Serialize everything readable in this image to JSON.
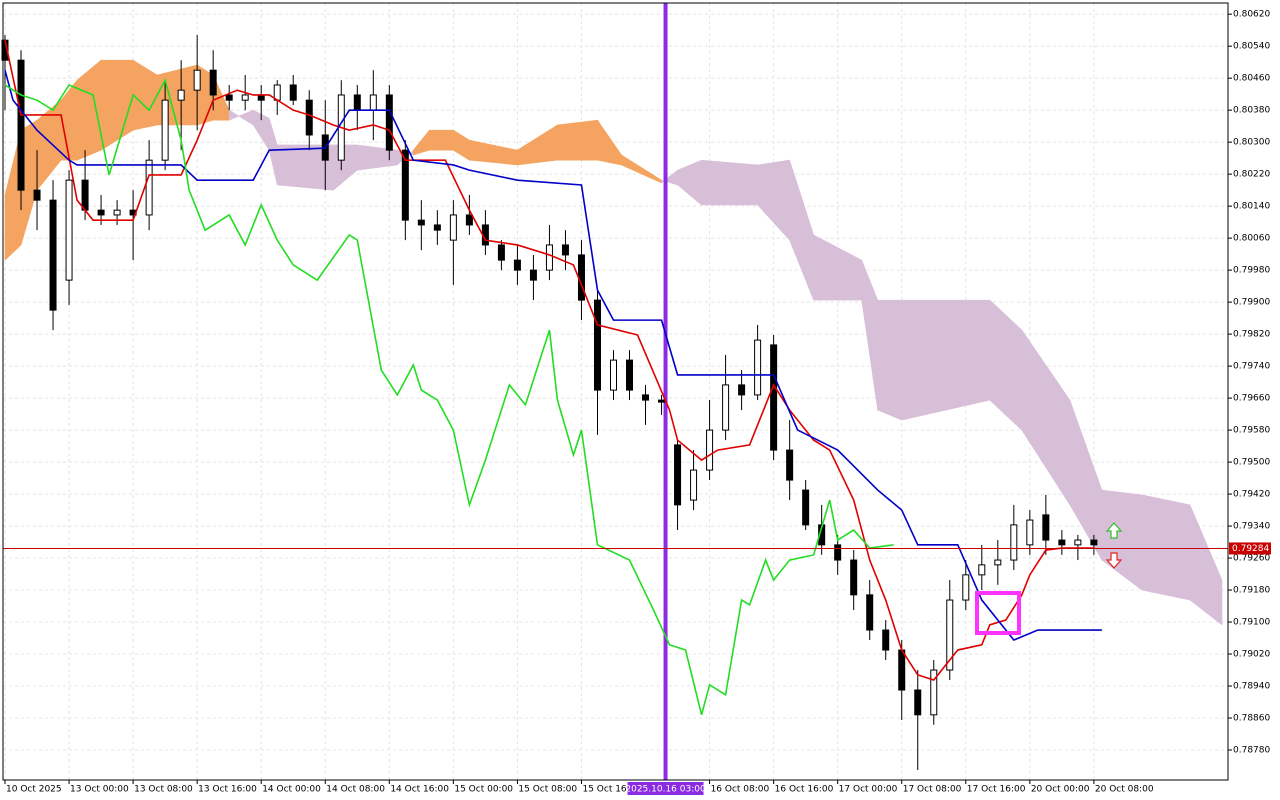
{
  "chart_data": {
    "type": "candlestick",
    "xlim": [
      -0.25,
      152.75
    ],
    "ylim": [
      0.78705,
      0.80648
    ],
    "grid": true,
    "yticks": [
      {
        "value": 0.8062,
        "label": "0.80620"
      },
      {
        "value": 0.8054,
        "label": "0.80540"
      },
      {
        "value": 0.8046,
        "label": "0.80460"
      },
      {
        "value": 0.8038,
        "label": "0.80380"
      },
      {
        "value": 0.803,
        "label": "0.80300"
      },
      {
        "value": 0.8022,
        "label": "0.80220"
      },
      {
        "value": 0.8014,
        "label": "0.80140"
      },
      {
        "value": 0.8006,
        "label": "0.80060"
      },
      {
        "value": 0.7998,
        "label": "0.79980"
      },
      {
        "value": 0.799,
        "label": "0.79900"
      },
      {
        "value": 0.7982,
        "label": "0.79820"
      },
      {
        "value": 0.7974,
        "label": "0.79740"
      },
      {
        "value": 0.7966,
        "label": "0.79660"
      },
      {
        "value": 0.7958,
        "label": "0.79580"
      },
      {
        "value": 0.795,
        "label": "0.79500"
      },
      {
        "value": 0.7942,
        "label": "0.79420"
      },
      {
        "value": 0.7934,
        "label": "0.79340"
      },
      {
        "value": 0.7926,
        "label": "0.79260"
      },
      {
        "value": 0.7918,
        "label": "0.79180"
      },
      {
        "value": 0.791,
        "label": "0.79100"
      },
      {
        "value": 0.7902,
        "label": "0.79020"
      },
      {
        "value": 0.7894,
        "label": "0.78940"
      },
      {
        "value": 0.7886,
        "label": "0.78860"
      },
      {
        "value": 0.7878,
        "label": "0.78780"
      }
    ],
    "xticks": [
      {
        "value": 0,
        "label": "10 Oct 2025"
      },
      {
        "value": 8,
        "label": "13 Oct 00:00"
      },
      {
        "value": 16,
        "label": "13 Oct 08:00"
      },
      {
        "value": 24,
        "label": "13 Oct 16:00"
      },
      {
        "value": 32,
        "label": "14 Oct 00:00"
      },
      {
        "value": 40,
        "label": "14 Oct 08:00"
      },
      {
        "value": 48,
        "label": "14 Oct 16:00"
      },
      {
        "value": 56,
        "label": "15 Oct 00:00"
      },
      {
        "value": 64,
        "label": "15 Oct 08:00"
      },
      {
        "value": 72,
        "label": "15 Oct 16:00"
      },
      {
        "value": 88,
        "label": "16 Oct 08:00"
      },
      {
        "value": 96,
        "label": "16 Oct 16:00"
      },
      {
        "value": 104,
        "label": "17 Oct 00:00"
      },
      {
        "value": 112,
        "label": "17 Oct 08:00"
      },
      {
        "value": 120,
        "label": "17 Oct 16:00"
      },
      {
        "value": 128,
        "label": "20 Oct 00:00"
      },
      {
        "value": 136,
        "label": "20 Oct 08:00"
      }
    ],
    "bull_color": "#ffffff",
    "bear_color": "#000000",
    "candles": {
      "x": [
        0,
        2,
        4,
        6,
        8,
        10,
        12,
        14,
        16,
        18,
        20,
        22,
        24,
        26,
        28,
        30,
        32,
        34,
        36,
        38,
        40,
        42,
        44,
        46,
        48,
        50,
        52,
        54,
        56,
        58,
        60,
        62,
        64,
        66,
        68,
        70,
        72,
        74,
        76,
        78,
        80,
        82,
        84,
        86,
        88,
        90,
        92,
        94,
        96,
        98,
        100,
        102,
        104,
        106,
        108,
        110,
        112,
        114,
        116,
        118,
        120,
        122,
        124,
        126,
        128,
        130,
        132,
        134,
        136
      ],
      "open": [
        0.80555,
        0.80505,
        0.8018,
        0.80155,
        0.79955,
        0.80205,
        0.8013,
        0.80118,
        0.8013,
        0.80118,
        0.80255,
        0.80405,
        0.8043,
        0.8048,
        0.80418,
        0.80405,
        0.80418,
        0.80405,
        0.80443,
        0.80405,
        0.80318,
        0.80255,
        0.80418,
        0.8038,
        0.80418,
        0.8028,
        0.80105,
        0.80093,
        0.80055,
        0.80118,
        0.80093,
        0.80043,
        0.80005,
        0.7998,
        0.7998,
        0.80043,
        0.80018,
        0.79905,
        0.7968,
        0.79755,
        0.79668,
        0.79655,
        0.79543,
        0.79405,
        0.7948,
        0.7958,
        0.79693,
        0.79668,
        0.79793,
        0.7953,
        0.7943,
        0.79343,
        0.79293,
        0.79255,
        0.79168,
        0.7908,
        0.7903,
        0.7893,
        0.78868,
        0.7898,
        0.79155,
        0.79218,
        0.79243,
        0.79255,
        0.79293,
        0.79368,
        0.79305,
        0.79293,
        0.79305
      ],
      "high": [
        0.80568,
        0.8053,
        0.8028,
        0.80205,
        0.8023,
        0.8028,
        0.80168,
        0.80155,
        0.8018,
        0.80305,
        0.80455,
        0.80505,
        0.80568,
        0.8053,
        0.80443,
        0.80468,
        0.80443,
        0.80455,
        0.80468,
        0.8043,
        0.80405,
        0.80455,
        0.80443,
        0.8048,
        0.80443,
        0.80305,
        0.80155,
        0.8013,
        0.80155,
        0.80168,
        0.8013,
        0.80055,
        0.80043,
        0.80018,
        0.80093,
        0.8008,
        0.80055,
        0.7993,
        0.7978,
        0.7978,
        0.79693,
        0.79668,
        0.79555,
        0.7953,
        0.79655,
        0.79768,
        0.7973,
        0.79843,
        0.79818,
        0.79605,
        0.79455,
        0.79393,
        0.79318,
        0.7928,
        0.79205,
        0.79105,
        0.79055,
        0.7898,
        0.79005,
        0.79205,
        0.79255,
        0.79293,
        0.79305,
        0.79393,
        0.7938,
        0.79418,
        0.7933,
        0.79318,
        0.79318
      ],
      "low": [
        0.8038,
        0.8013,
        0.8008,
        0.7983,
        0.79893,
        0.80105,
        0.80093,
        0.80093,
        0.80005,
        0.8008,
        0.8023,
        0.8028,
        0.8033,
        0.8038,
        0.8038,
        0.8038,
        0.80355,
        0.80368,
        0.80393,
        0.8028,
        0.8018,
        0.8023,
        0.8033,
        0.80305,
        0.80255,
        0.80055,
        0.8003,
        0.80043,
        0.79943,
        0.80068,
        0.80018,
        0.7998,
        0.79943,
        0.79905,
        0.79955,
        0.7998,
        0.79855,
        0.79568,
        0.79655,
        0.79655,
        0.79593,
        0.79618,
        0.7933,
        0.7938,
        0.79455,
        0.79555,
        0.7963,
        0.79655,
        0.79505,
        0.79405,
        0.7933,
        0.79268,
        0.79218,
        0.7913,
        0.79055,
        0.79005,
        0.78855,
        0.7873,
        0.78843,
        0.78955,
        0.7913,
        0.7918,
        0.79193,
        0.7923,
        0.79268,
        0.79268,
        0.79268,
        0.79255,
        0.79268
      ],
      "close": [
        0.80505,
        0.8018,
        0.80155,
        0.7988,
        0.80205,
        0.8013,
        0.80118,
        0.8013,
        0.80118,
        0.80255,
        0.80405,
        0.8043,
        0.8048,
        0.80418,
        0.80405,
        0.80418,
        0.80405,
        0.80443,
        0.80405,
        0.80318,
        0.80255,
        0.80418,
        0.8038,
        0.80418,
        0.8028,
        0.80105,
        0.80093,
        0.8008,
        0.80118,
        0.80093,
        0.80043,
        0.80005,
        0.7998,
        0.79955,
        0.80043,
        0.80018,
        0.79905,
        0.7968,
        0.79755,
        0.7968,
        0.79655,
        0.7965,
        0.79393,
        0.7948,
        0.7958,
        0.79693,
        0.79668,
        0.79805,
        0.7953,
        0.79455,
        0.79343,
        0.79293,
        0.79255,
        0.79168,
        0.7908,
        0.7903,
        0.7893,
        0.78868,
        0.7898,
        0.79155,
        0.79218,
        0.79243,
        0.79255,
        0.79343,
        0.79355,
        0.79305,
        0.79293,
        0.79305,
        0.79293
      ]
    },
    "cloud": {
      "up_color": "#f4a460",
      "down_color": "#d8bfd8",
      "x": [
        0,
        2,
        4,
        7,
        9,
        12,
        16,
        19,
        24,
        26,
        28,
        31,
        33,
        34,
        41,
        44,
        49,
        51,
        53,
        56,
        58,
        64,
        69,
        74,
        77,
        82,
        84,
        87,
        94,
        98,
        101,
        107,
        109,
        112,
        123,
        127,
        133,
        137,
        142,
        148,
        152
      ],
      "span_a": [
        0.80168,
        0.8033,
        0.80355,
        0.80405,
        0.80455,
        0.80505,
        0.80505,
        0.80468,
        0.80493,
        0.80468,
        0.8038,
        0.80343,
        0.8028,
        0.80193,
        0.8018,
        0.8023,
        0.80243,
        0.8028,
        0.8033,
        0.8033,
        0.80305,
        0.8028,
        0.80343,
        0.80355,
        0.80268,
        0.80205,
        0.80193,
        0.80143,
        0.80143,
        0.80055,
        0.79905,
        0.79905,
        0.7963,
        0.79605,
        0.79655,
        0.7958,
        0.79393,
        0.79255,
        0.7918,
        0.79155,
        0.79093
      ],
      "span_b": [
        0.80005,
        0.80043,
        0.8018,
        0.80255,
        0.80255,
        0.8028,
        0.8033,
        0.80343,
        0.80343,
        0.80355,
        0.80355,
        0.8038,
        0.8036,
        0.80293,
        0.80293,
        0.80293,
        0.8028,
        0.80268,
        0.8028,
        0.8028,
        0.80255,
        0.80243,
        0.80255,
        0.80255,
        0.80243,
        0.80198,
        0.8023,
        0.80255,
        0.80243,
        0.80255,
        0.80068,
        0.80005,
        0.79905,
        0.79905,
        0.79905,
        0.7983,
        0.79655,
        0.7943,
        0.79418,
        0.79393,
        0.79205
      ]
    },
    "lines": [
      {
        "color": "#e00000",
        "x": [
          0,
          2,
          7,
          9,
          11,
          16,
          18,
          22,
          24,
          26,
          29,
          31,
          33,
          36,
          38,
          41,
          43,
          46,
          48,
          50,
          55,
          58,
          60,
          64,
          68,
          71,
          74,
          79,
          83,
          84,
          87,
          89,
          93,
          96,
          98,
          101,
          103,
          106,
          108,
          110,
          112,
          114,
          116,
          119,
          122,
          123,
          125,
          127,
          128,
          130,
          132,
          136
        ],
        "values": [
          0.80555,
          0.80368,
          0.80368,
          0.80155,
          0.80105,
          0.80105,
          0.80218,
          0.80218,
          0.80305,
          0.80405,
          0.8043,
          0.80418,
          0.80418,
          0.8038,
          0.80368,
          0.80343,
          0.8033,
          0.80343,
          0.8033,
          0.80255,
          0.80255,
          0.8013,
          0.80055,
          0.80043,
          0.80018,
          0.79993,
          0.79843,
          0.79818,
          0.7963,
          0.79555,
          0.79505,
          0.7953,
          0.79543,
          0.79693,
          0.7963,
          0.79555,
          0.7953,
          0.79405,
          0.79255,
          0.79155,
          0.7903,
          0.78968,
          0.78955,
          0.7903,
          0.79043,
          0.79093,
          0.79105,
          0.79168,
          0.79218,
          0.7928,
          0.79285,
          0.79285
        ]
      },
      {
        "color": "#0000c8",
        "x": [
          0,
          1,
          4,
          8,
          9,
          22,
          24,
          31,
          33,
          40,
          43,
          48,
          51,
          56,
          58,
          64,
          72,
          74,
          76,
          82,
          84,
          96,
          99,
          104,
          109,
          112,
          114,
          119,
          122,
          126,
          129,
          137
        ],
        "values": [
          0.8048,
          0.80405,
          0.8033,
          0.80255,
          0.80243,
          0.80243,
          0.80205,
          0.80205,
          0.8028,
          0.80285,
          0.8038,
          0.8038,
          0.80255,
          0.80243,
          0.8023,
          0.80205,
          0.80193,
          0.7993,
          0.79855,
          0.79855,
          0.79718,
          0.79718,
          0.7958,
          0.7953,
          0.7943,
          0.7938,
          0.79293,
          0.79293,
          0.79155,
          0.79055,
          0.7908,
          0.7908
        ]
      },
      {
        "color": "#22dd22",
        "x": [
          0,
          2,
          4,
          6,
          8,
          11,
          13,
          16,
          18,
          20,
          22,
          23,
          25,
          28,
          30,
          32,
          34,
          36,
          39,
          43,
          44,
          47,
          49,
          51,
          52,
          54,
          56,
          58,
          60,
          63,
          65,
          68,
          69,
          71,
          72,
          74,
          78,
          81,
          83,
          85,
          87,
          88,
          90,
          92,
          93,
          95,
          96,
          98,
          101,
          103,
          104,
          106,
          108,
          111
        ],
        "values": [
          0.80443,
          0.80418,
          0.80405,
          0.8038,
          0.80443,
          0.80418,
          0.80218,
          0.80418,
          0.8038,
          0.80455,
          0.80305,
          0.8018,
          0.8008,
          0.80118,
          0.80043,
          0.80143,
          0.80055,
          0.79993,
          0.79955,
          0.80068,
          0.80055,
          0.7973,
          0.79668,
          0.79743,
          0.7968,
          0.79655,
          0.7958,
          0.79393,
          0.79505,
          0.79693,
          0.79643,
          0.7983,
          0.79655,
          0.79518,
          0.7958,
          0.79293,
          0.79255,
          0.7913,
          0.79043,
          0.7903,
          0.78868,
          0.78943,
          0.78918,
          0.79155,
          0.79143,
          0.79255,
          0.79205,
          0.79255,
          0.79268,
          0.79405,
          0.79305,
          0.7933,
          0.79285,
          0.79293
        ]
      }
    ],
    "vline": {
      "x": 82.5,
      "label": "2025.10.16 03:00",
      "color": "#8b2be2"
    },
    "last_price": 0.79284,
    "last_price_color": "#c80000"
  }
}
